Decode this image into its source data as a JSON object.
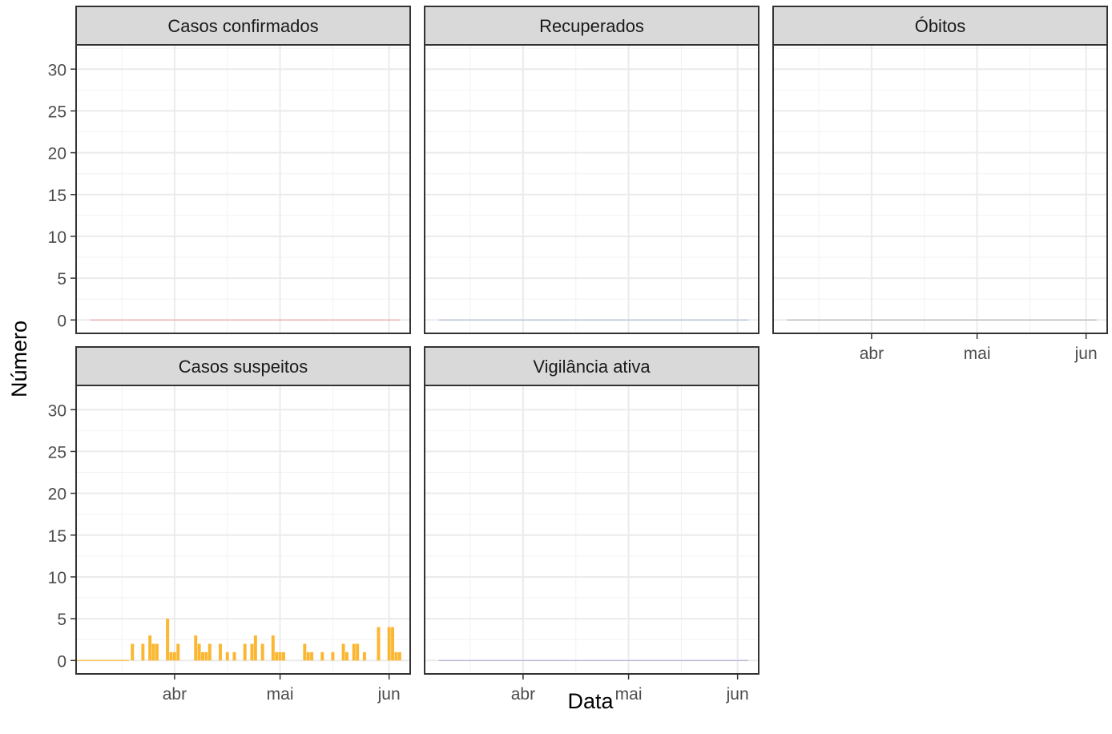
{
  "chart_data": {
    "type": "bar",
    "xlabel": "Data",
    "ylabel": "Número",
    "ylim": [
      -1.6,
      32.9
    ],
    "y_ticks": [
      0,
      5,
      10,
      15,
      20,
      25,
      30
    ],
    "xlim": [
      "2020-03-04",
      "2020-06-07"
    ],
    "x_ticks": [
      {
        "date": "2020-04-01",
        "label": "abr"
      },
      {
        "date": "2020-05-01",
        "label": "mai"
      },
      {
        "date": "2020-06-01",
        "label": "jun"
      }
    ],
    "x_minor_ticks": [
      "2020-03-17",
      "2020-04-16",
      "2020-05-16"
    ],
    "grid": true,
    "legend": "none",
    "layout": {
      "columns": 3
    },
    "panels": [
      {
        "title": "Casos confirmados",
        "color": "#f2a0a0",
        "values": [],
        "baseline": {
          "from": "2020-03-08",
          "to": "2020-06-04"
        }
      },
      {
        "title": "Recuperados",
        "color": "#a8bcd8",
        "values": [],
        "baseline": {
          "from": "2020-03-08",
          "to": "2020-06-04"
        }
      },
      {
        "title": "Óbitos",
        "color": "#b0b0b8",
        "values": [],
        "baseline": {
          "from": "2020-03-08",
          "to": "2020-06-04"
        }
      },
      {
        "title": "Casos suspeitos",
        "color": "#fbb731",
        "values": [
          {
            "date": "2020-03-20",
            "value": 2
          },
          {
            "date": "2020-03-23",
            "value": 2
          },
          {
            "date": "2020-03-25",
            "value": 3
          },
          {
            "date": "2020-03-26",
            "value": 2
          },
          {
            "date": "2020-03-27",
            "value": 2
          },
          {
            "date": "2020-03-30",
            "value": 5
          },
          {
            "date": "2020-03-31",
            "value": 1
          },
          {
            "date": "2020-04-01",
            "value": 1
          },
          {
            "date": "2020-04-02",
            "value": 2
          },
          {
            "date": "2020-04-07",
            "value": 3
          },
          {
            "date": "2020-04-08",
            "value": 2
          },
          {
            "date": "2020-04-09",
            "value": 1
          },
          {
            "date": "2020-04-10",
            "value": 1
          },
          {
            "date": "2020-04-11",
            "value": 2
          },
          {
            "date": "2020-04-14",
            "value": 2
          },
          {
            "date": "2020-04-16",
            "value": 1
          },
          {
            "date": "2020-04-18",
            "value": 1
          },
          {
            "date": "2020-04-21",
            "value": 2
          },
          {
            "date": "2020-04-23",
            "value": 2
          },
          {
            "date": "2020-04-24",
            "value": 3
          },
          {
            "date": "2020-04-26",
            "value": 2
          },
          {
            "date": "2020-04-29",
            "value": 3
          },
          {
            "date": "2020-04-30",
            "value": 1
          },
          {
            "date": "2020-05-01",
            "value": 1
          },
          {
            "date": "2020-05-02",
            "value": 1
          },
          {
            "date": "2020-05-08",
            "value": 2
          },
          {
            "date": "2020-05-09",
            "value": 1
          },
          {
            "date": "2020-05-10",
            "value": 1
          },
          {
            "date": "2020-05-13",
            "value": 1
          },
          {
            "date": "2020-05-16",
            "value": 1
          },
          {
            "date": "2020-05-19",
            "value": 2
          },
          {
            "date": "2020-05-20",
            "value": 1
          },
          {
            "date": "2020-05-22",
            "value": 2
          },
          {
            "date": "2020-05-23",
            "value": 2
          },
          {
            "date": "2020-05-25",
            "value": 1
          },
          {
            "date": "2020-05-29",
            "value": 4
          },
          {
            "date": "2020-06-01",
            "value": 4
          },
          {
            "date": "2020-06-02",
            "value": 4
          },
          {
            "date": "2020-06-03",
            "value": 1
          },
          {
            "date": "2020-06-04",
            "value": 1
          }
        ],
        "baseline": {
          "from": "2020-03-04",
          "to": "2020-03-19"
        }
      },
      {
        "title": "Vigilância ativa",
        "color": "#b0b0d8",
        "values": [],
        "baseline": {
          "from": "2020-03-08",
          "to": "2020-06-04"
        }
      }
    ]
  }
}
